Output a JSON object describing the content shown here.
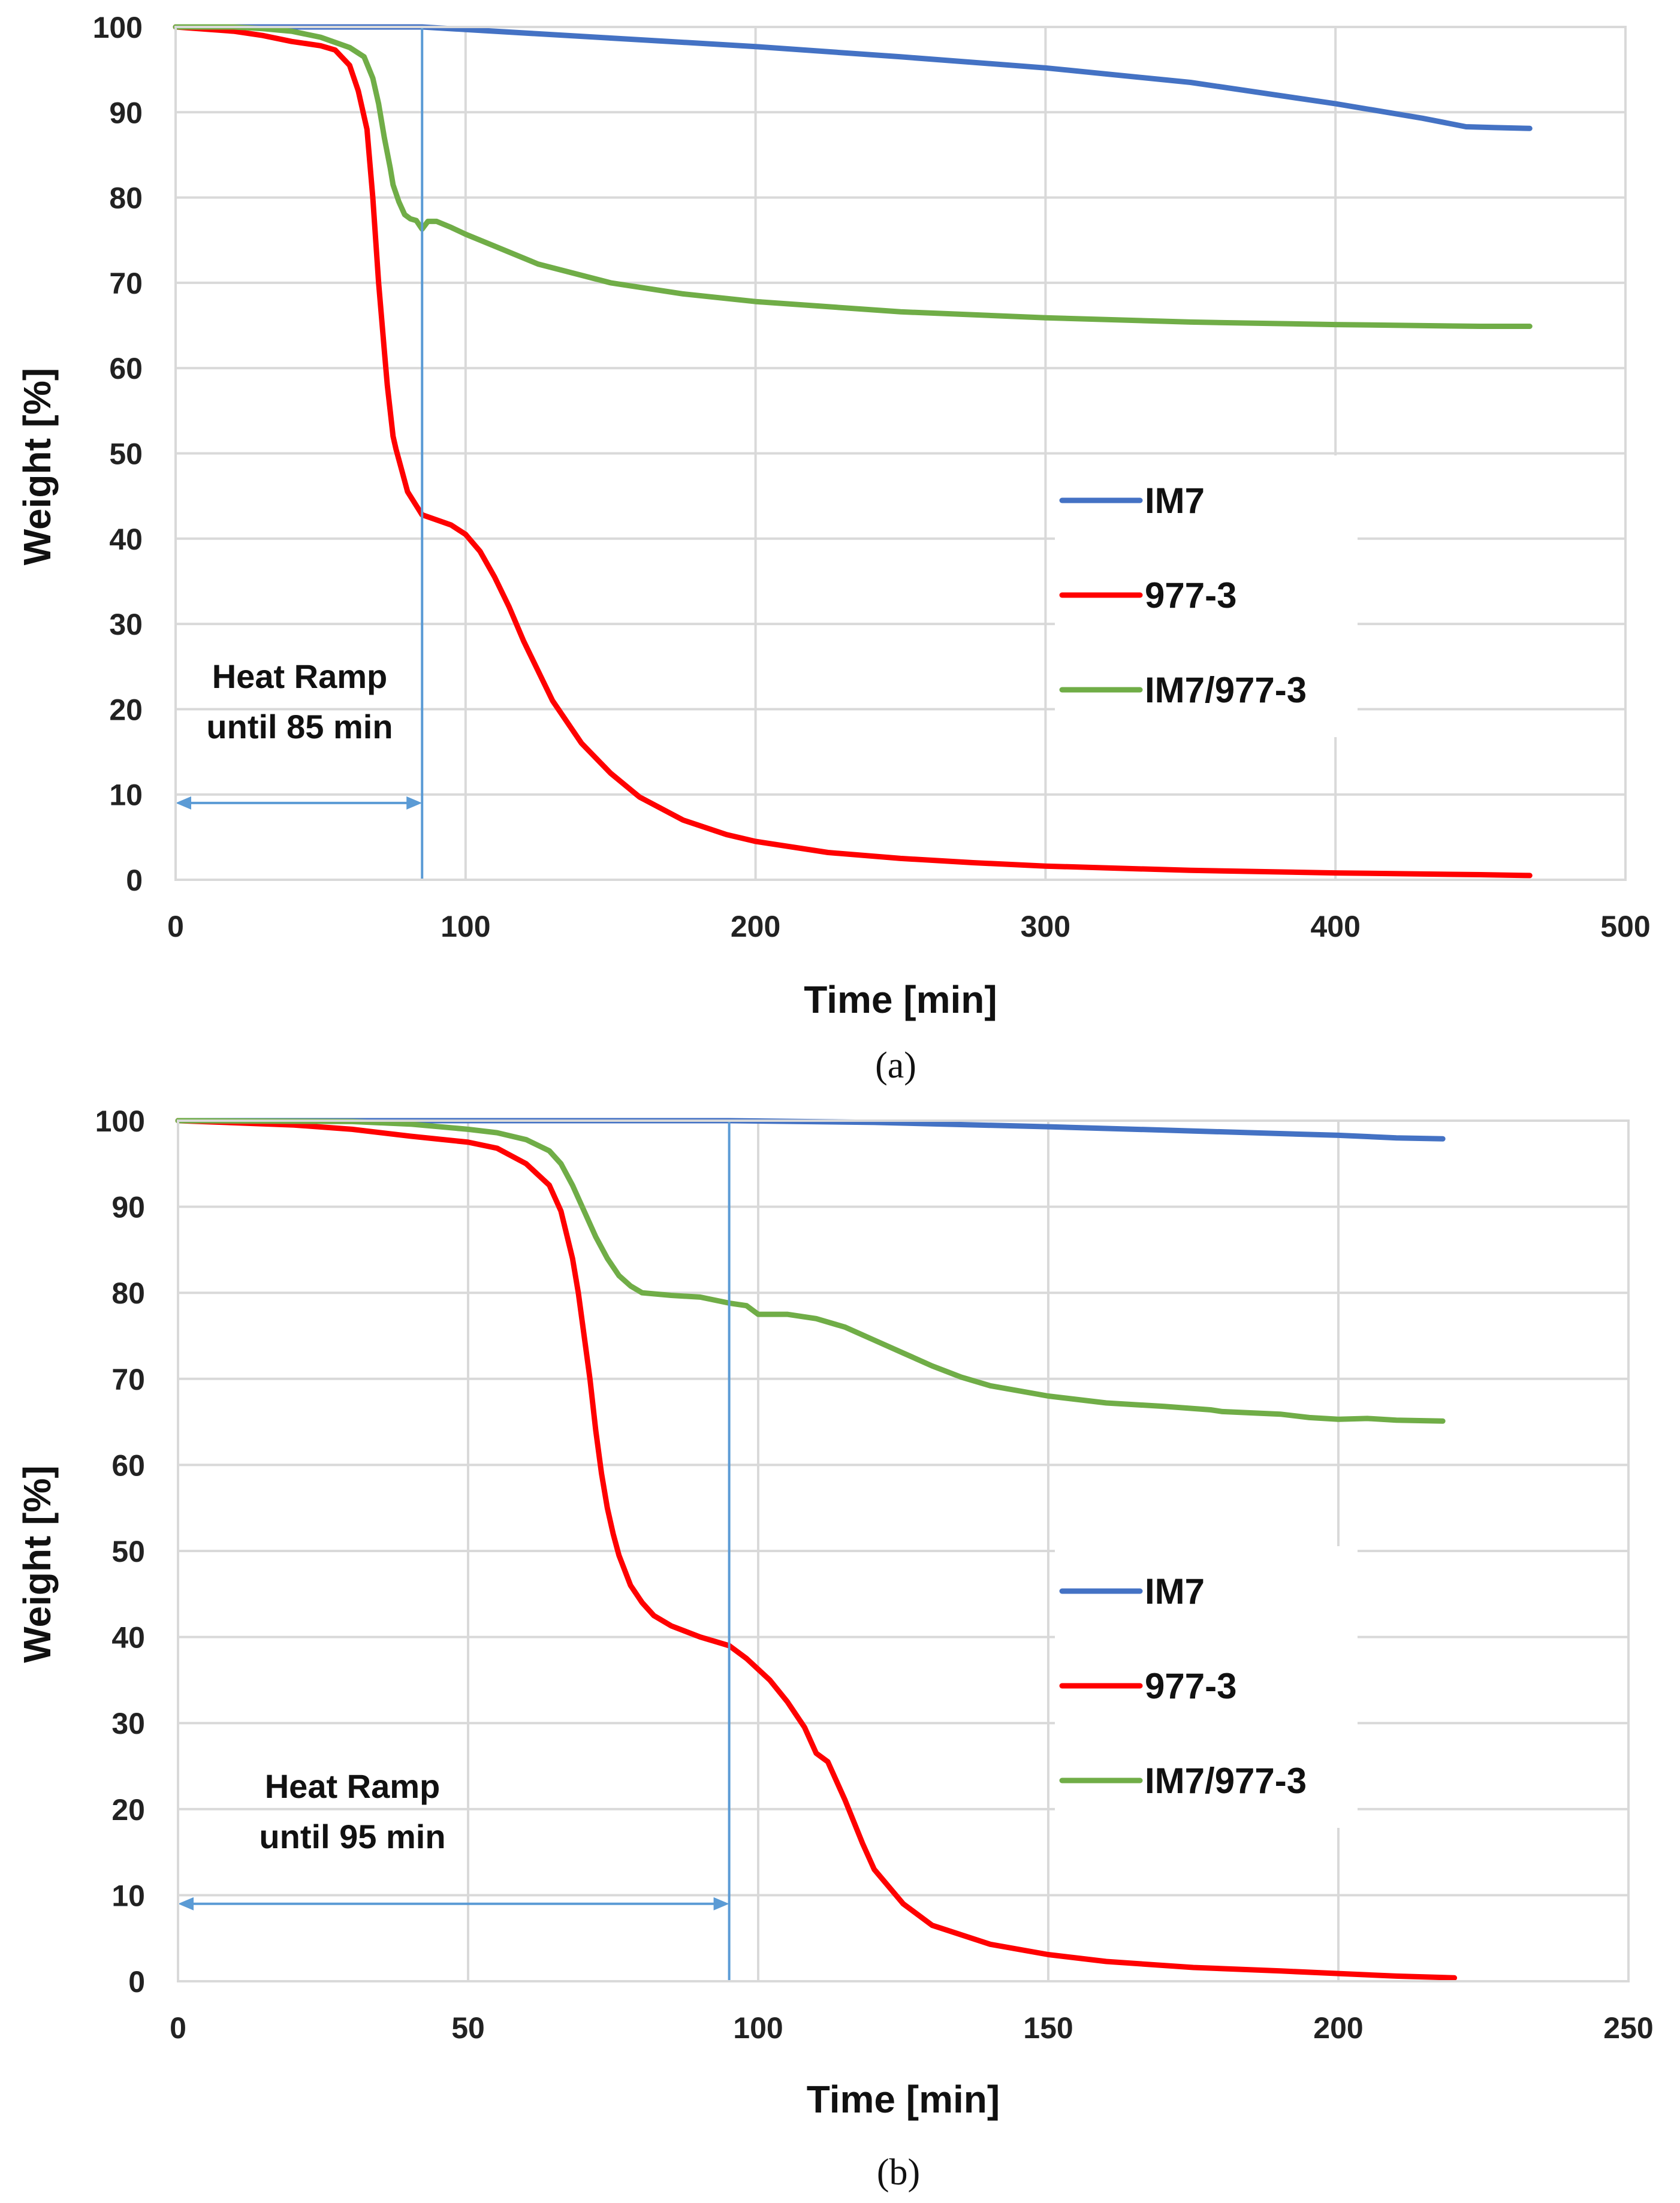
{
  "chart_data": [
    {
      "type": "line",
      "panel_label": "(a)",
      "xlabel": "Time [min]",
      "ylabel": "Weight [%]",
      "xlim": [
        0,
        500
      ],
      "ylim": [
        0,
        100
      ],
      "xticks": [
        0,
        100,
        200,
        300,
        400,
        500
      ],
      "yticks": [
        0,
        10,
        20,
        30,
        40,
        50,
        60,
        70,
        80,
        90,
        100
      ],
      "grid": true,
      "legend_position": "center-right",
      "annotation": {
        "lines": [
          "Heat Ramp",
          "until 85 min"
        ],
        "vline_x": 85,
        "arrow_y": 9,
        "arrow_from_x": 0,
        "arrow_to_x": 85
      },
      "series": [
        {
          "name": "IM7",
          "color": "#4472C4",
          "x": [
            0,
            20,
            40,
            60,
            85,
            100,
            125,
            150,
            200,
            250,
            300,
            350,
            400,
            430,
            445,
            455,
            467
          ],
          "y": [
            100,
            100,
            100,
            100,
            100,
            99.7,
            99.2,
            98.7,
            97.7,
            96.5,
            95.2,
            93.5,
            91.0,
            89.3,
            88.3,
            88.2,
            88.1
          ]
        },
        {
          "name": "977-3",
          "color": "#FF0000",
          "x": [
            0,
            20,
            30,
            40,
            50,
            55,
            60,
            63,
            66,
            68,
            70,
            71,
            72,
            73,
            74,
            75,
            76,
            78,
            80,
            85,
            90,
            95,
            100,
            105,
            110,
            115,
            120,
            130,
            140,
            150,
            160,
            175,
            190,
            200,
            225,
            250,
            275,
            300,
            350,
            400,
            450,
            467
          ],
          "y": [
            100,
            99.5,
            99,
            98.3,
            97.8,
            97.3,
            95.5,
            92.5,
            88,
            80,
            70,
            66,
            62,
            58,
            55,
            52,
            50.5,
            48,
            45.5,
            42.8,
            42.2,
            41.6,
            40.5,
            38.5,
            35.5,
            32,
            28,
            21,
            16,
            12.5,
            9.7,
            7,
            5.3,
            4.5,
            3.2,
            2.5,
            2.0,
            1.6,
            1.1,
            0.8,
            0.6,
            0.5
          ]
        },
        {
          "name": "IM7/977-3",
          "color": "#70AD47",
          "x": [
            0,
            20,
            30,
            40,
            50,
            60,
            65,
            68,
            70,
            72,
            74,
            75,
            77,
            79,
            81,
            83,
            85,
            87,
            90,
            95,
            100,
            110,
            125,
            150,
            175,
            200,
            250,
            300,
            350,
            400,
            450,
            467
          ],
          "y": [
            100,
            100,
            99.8,
            99.5,
            98.8,
            97.6,
            96.5,
            94,
            91,
            87,
            83.5,
            81.5,
            79.5,
            78,
            77.5,
            77.3,
            76.3,
            77.2,
            77.2,
            76.5,
            75.7,
            74.3,
            72.2,
            70,
            68.7,
            67.8,
            66.6,
            65.9,
            65.4,
            65.1,
            64.9,
            64.9
          ]
        }
      ]
    },
    {
      "type": "line",
      "panel_label": "(b)",
      "xlabel": "Time [min]",
      "ylabel": "Weight [%]",
      "xlim": [
        0,
        250
      ],
      "ylim": [
        0,
        100
      ],
      "xticks": [
        0,
        50,
        100,
        150,
        200,
        250
      ],
      "yticks": [
        0,
        10,
        20,
        30,
        40,
        50,
        60,
        70,
        80,
        90,
        100
      ],
      "grid": true,
      "legend_position": "center-right",
      "annotation": {
        "lines": [
          "Heat Ramp",
          "until 95 min"
        ],
        "vline_x": 95,
        "arrow_y": 9,
        "arrow_from_x": 0,
        "arrow_to_x": 95
      },
      "series": [
        {
          "name": "IM7",
          "color": "#4472C4",
          "x": [
            0,
            50,
            95,
            120,
            150,
            175,
            200,
            210,
            218
          ],
          "y": [
            100,
            100,
            100,
            99.8,
            99.3,
            98.8,
            98.3,
            98.0,
            97.9
          ]
        },
        {
          "name": "977-3",
          "color": "#FF0000",
          "x": [
            0,
            20,
            30,
            40,
            50,
            55,
            60,
            64,
            66,
            68,
            69,
            70,
            71,
            72,
            73,
            74,
            75,
            76,
            78,
            80,
            82,
            85,
            90,
            95,
            98,
            102,
            105,
            108,
            110,
            112,
            115,
            118,
            120,
            125,
            130,
            140,
            150,
            160,
            175,
            190,
            200,
            210,
            220
          ],
          "y": [
            100,
            99.5,
            99,
            98.2,
            97.5,
            96.8,
            95,
            92.5,
            89.5,
            84,
            80,
            75,
            70,
            64,
            59,
            55,
            52,
            49.5,
            46,
            44,
            42.5,
            41.3,
            40,
            39,
            37.5,
            35,
            32.5,
            29.5,
            26.5,
            25.5,
            21,
            16,
            13,
            9,
            6.5,
            4.3,
            3.1,
            2.3,
            1.6,
            1.2,
            0.9,
            0.6,
            0.4
          ]
        },
        {
          "name": "IM7/977-3",
          "color": "#70AD47",
          "x": [
            0,
            30,
            40,
            50,
            55,
            60,
            64,
            66,
            68,
            70,
            72,
            74,
            76,
            78,
            80,
            85,
            90,
            95,
            98,
            100,
            105,
            110,
            115,
            120,
            125,
            130,
            135,
            140,
            150,
            160,
            170,
            178,
            180,
            190,
            195,
            200,
            205,
            210,
            218
          ],
          "y": [
            100,
            99.9,
            99.6,
            99.0,
            98.6,
            97.8,
            96.5,
            95,
            92.5,
            89.5,
            86.5,
            84,
            82,
            80.8,
            80,
            79.7,
            79.5,
            78.8,
            78.5,
            77.5,
            77.5,
            77,
            76,
            74.5,
            73,
            71.5,
            70.2,
            69.2,
            68,
            67.2,
            66.8,
            66.4,
            66.2,
            65.9,
            65.5,
            65.3,
            65.4,
            65.2,
            65.1
          ]
        }
      ]
    }
  ]
}
